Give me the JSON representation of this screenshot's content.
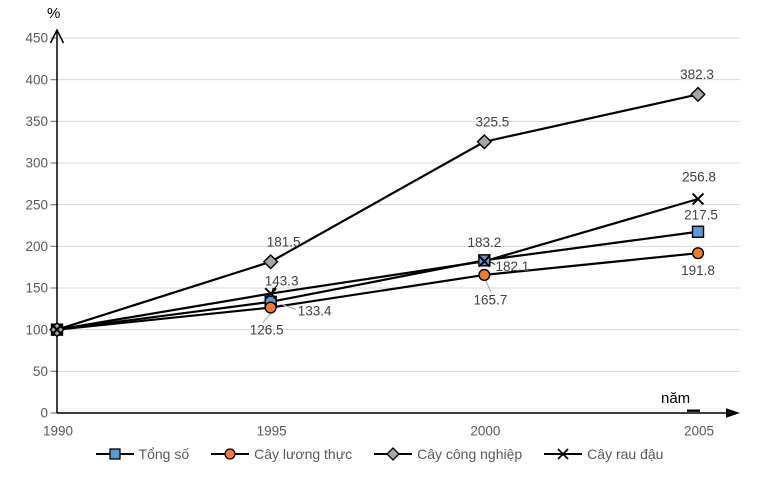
{
  "chart_data": {
    "type": "line",
    "title": "",
    "ylabel": "%",
    "xlabel": "năm",
    "x_categories": [
      "1990",
      "1995",
      "2000",
      "2005"
    ],
    "ylim": [
      0,
      450
    ],
    "ytick_step": 50,
    "grid": true,
    "legend_position": "bottom",
    "gridline_color": "#D9D9D9",
    "axis_color": "#000000",
    "tick_label_color": "#595959",
    "data_label_color": "#404040",
    "series": [
      {
        "name": "Tổng số",
        "marker": "square",
        "color": "#5B9BD5",
        "line_color": "#000000",
        "values": [
          100,
          133.4,
          183.2,
          217.5
        ],
        "labels": [
          "133.4",
          "183.2",
          "217.5"
        ]
      },
      {
        "name": "Cây lương thực",
        "marker": "circle",
        "color": "#ED7D31",
        "line_color": "#000000",
        "values": [
          100,
          126.5,
          165.7,
          191.8
        ],
        "labels": [
          "126.5",
          "165.7",
          "191.8"
        ]
      },
      {
        "name": "Cây công nghiệp",
        "marker": "diamond",
        "color": "#A6A6A6",
        "line_color": "#000000",
        "values": [
          100,
          181.5,
          325.5,
          382.3
        ],
        "labels": [
          "181.5",
          "325.5",
          "382.3"
        ]
      },
      {
        "name": "Cây rau đậu",
        "marker": "x",
        "color": "#000000",
        "line_color": "#000000",
        "values": [
          100,
          143.3,
          182.1,
          256.8
        ],
        "labels": [
          "143.3",
          "182.1",
          "256.8"
        ]
      }
    ]
  }
}
